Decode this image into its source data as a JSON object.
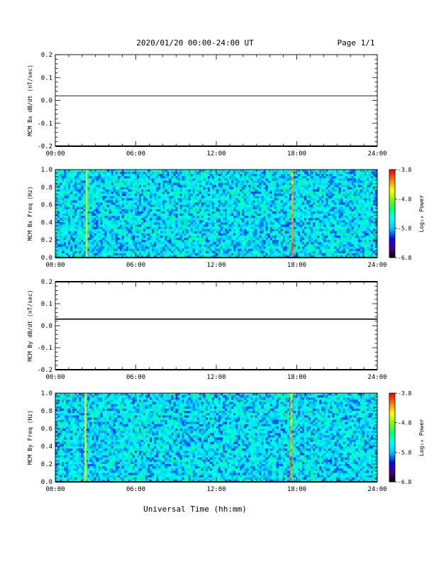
{
  "header": {
    "title": "2020/01/20  00:00-24:00 UT",
    "page": "Page 1/1"
  },
  "footer": {
    "xlabel": "Universal Time (hh:mm)"
  },
  "colors": {
    "trace": "#000000",
    "colormap": [
      "#000000",
      "#4b0082",
      "#0000ff",
      "#00bfff",
      "#00ffff",
      "#00ff7f",
      "#7fff00",
      "#ffff00",
      "#ff8000",
      "#ff0000"
    ]
  },
  "chart_data": [
    {
      "type": "line",
      "ylabel": "MCM Bx dB/dt (nT/sec)",
      "xlim": [
        "00:00",
        "24:00"
      ],
      "ylim": [
        -0.2,
        0.2
      ],
      "x_ticks": [
        "00:00",
        "06:00",
        "12:00",
        "18:00",
        "24:00"
      ],
      "y_ticks": [
        "-0.2",
        "-0.1",
        "0.0",
        "0.1",
        "0.2"
      ],
      "series": [
        {
          "x": [
            "00:00",
            "24:00"
          ],
          "values": [
            0.02,
            0.02
          ]
        }
      ]
    },
    {
      "type": "heatmap",
      "ylabel": "MCM Bx Freq (Hz)",
      "xlim": [
        "00:00",
        "24:00"
      ],
      "ylim": [
        0.0,
        1.0
      ],
      "x_ticks": [
        "00:00",
        "06:00",
        "12:00",
        "18:00",
        "24:00"
      ],
      "y_ticks": [
        "0.0",
        "0.2",
        "0.4",
        "0.6",
        "0.8",
        "1.0"
      ],
      "colorbar": {
        "label": "Log₁₀ Power",
        "range": [
          -6.8,
          -3.8
        ],
        "ticks": [
          "-3.8",
          "-4.8",
          "-5.8",
          "-6.8"
        ]
      },
      "background_level": -5.6,
      "vertical_features": [
        {
          "time": "02:20",
          "level": -4.5
        },
        {
          "time": "17:40",
          "level": -4.3
        }
      ]
    },
    {
      "type": "line",
      "ylabel": "MCM By dB/dt (nT/sec)",
      "xlim": [
        "00:00",
        "24:00"
      ],
      "ylim": [
        -0.2,
        0.2
      ],
      "x_ticks": [
        "00:00",
        "06:00",
        "12:00",
        "18:00",
        "24:00"
      ],
      "y_ticks": [
        "-0.2",
        "-0.1",
        "0.0",
        "0.1",
        "0.2"
      ],
      "series": [
        {
          "x": [
            "00:00",
            "24:00"
          ],
          "values": [
            0.03,
            0.03
          ]
        }
      ]
    },
    {
      "type": "heatmap",
      "ylabel": "MCM By Freq (Hz)",
      "xlim": [
        "00:00",
        "24:00"
      ],
      "ylim": [
        0.0,
        1.0
      ],
      "x_ticks": [
        "00:00",
        "06:00",
        "12:00",
        "18:00",
        "24:00"
      ],
      "y_ticks": [
        "0.0",
        "0.2",
        "0.4",
        "0.6",
        "0.8",
        "1.0"
      ],
      "colorbar": {
        "label": "Log₁₀ Power",
        "range": [
          -6.8,
          -3.8
        ],
        "ticks": [
          "-3.8",
          "-4.8",
          "-5.8",
          "-6.8"
        ]
      },
      "background_level": -5.6,
      "vertical_features": [
        {
          "time": "02:15",
          "level": -4.5
        },
        {
          "time": "17:35",
          "level": -4.3
        }
      ]
    }
  ]
}
